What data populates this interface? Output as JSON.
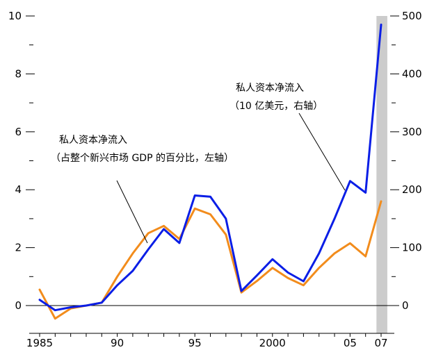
{
  "chart_data": {
    "type": "line",
    "x": [
      1985,
      1986,
      1987,
      1988,
      1989,
      1990,
      1991,
      1992,
      1993,
      1994,
      1995,
      1996,
      1997,
      1998,
      1999,
      2000,
      2001,
      2002,
      2003,
      2004,
      2005,
      2006,
      2007
    ],
    "x_tick_labels": [
      {
        "x": 1985,
        "label": "1985"
      },
      {
        "x": 1990,
        "label": "90"
      },
      {
        "x": 1995,
        "label": "95"
      },
      {
        "x": 2000,
        "label": "2000"
      },
      {
        "x": 2005,
        "label": "05"
      },
      {
        "x": 2007,
        "label": "07"
      }
    ],
    "y_left": {
      "range": [
        -0.8,
        10.3
      ],
      "ticks": [
        0,
        2,
        4,
        6,
        8,
        10
      ],
      "minor_ticks": [
        1,
        3,
        5,
        7,
        9
      ]
    },
    "y_right": {
      "range": [
        -40,
        515
      ],
      "ticks": [
        0,
        100,
        200,
        300,
        400,
        500
      ],
      "minor_ticks": [
        50,
        150,
        250,
        350,
        450
      ]
    },
    "shaded_region": {
      "x_from": 2006.7,
      "x_to": 2007.4,
      "color": "#cccccc"
    },
    "series": [
      {
        "name": "私人资本净流入（占整个新兴市场 GDP 的百分比，左轴）",
        "axis": "left",
        "color": "#f28c1c",
        "values": [
          0.55,
          -0.45,
          -0.1,
          0.0,
          0.1,
          1.0,
          1.8,
          2.5,
          2.75,
          2.3,
          3.35,
          3.15,
          2.45,
          0.45,
          0.85,
          1.3,
          0.95,
          0.7,
          1.3,
          1.8,
          2.15,
          1.7,
          3.6
        ]
      },
      {
        "name": "私人资本净流入（10 亿美元，右轴）",
        "axis": "right",
        "color": "#0a1ee6",
        "values": [
          10,
          -8,
          -3,
          0,
          5,
          35,
          60,
          97,
          132,
          108,
          190,
          188,
          150,
          25,
          52,
          80,
          57,
          42,
          90,
          150,
          215,
          195,
          485
        ]
      }
    ],
    "annotations": [
      {
        "lines": [
          "私人资本净流入",
          "（占整个新兴市场 GDP 的百分比，左轴）"
        ],
        "series_index": 0
      },
      {
        "lines": [
          "私人资本净流入",
          "（10 亿美元，右轴）"
        ],
        "series_index": 1
      }
    ]
  }
}
